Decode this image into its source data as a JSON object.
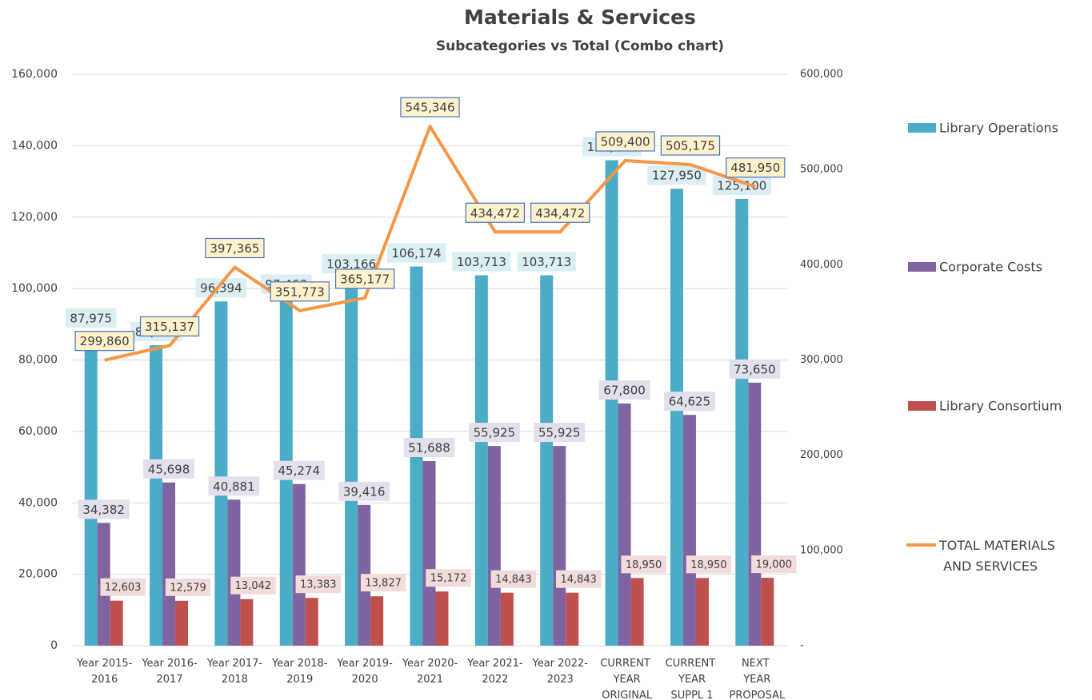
{
  "chart_data": {
    "type": "combo",
    "title": "Materials & Services",
    "subtitle": "Subcategories vs Total (Combo chart)",
    "categories": [
      "Year 2015-2016",
      "Year 2016-2017",
      "Year 2017-2018",
      "Year 2018-2019",
      "Year 2019-2020",
      "Year 2020-2021",
      "Year 2021-2022",
      "Year 2022-2023",
      "CURRENT YEAR ORIGINAL",
      "CURRENT YEAR SUPPL 1",
      "NEXT YEAR PROPOSAL"
    ],
    "series": [
      {
        "name": "Library Operations",
        "type": "bar",
        "color": "#4bacc6",
        "label_bg": "#daeef3",
        "values": [
          87975,
          84140,
          96394,
          97463,
          103166,
          106174,
          103713,
          103713,
          135950,
          127950,
          125100
        ],
        "value_labels": [
          "87,975",
          "84,140",
          "96,394",
          "97,463",
          "103,166",
          "106,174",
          "103,713",
          "103,713",
          "135,950",
          "127,950",
          "125,100"
        ]
      },
      {
        "name": "Corporate Costs",
        "type": "bar",
        "color": "#8064a2",
        "label_bg": "#e4dfec",
        "values": [
          34382,
          45698,
          40881,
          45274,
          39416,
          51688,
          55925,
          55925,
          67800,
          64625,
          73650
        ],
        "value_labels": [
          "34,382",
          "45,698",
          "40,881",
          "45,274",
          "39,416",
          "51,688",
          "55,925",
          "55,925",
          "67,800",
          "64,625",
          "73,650"
        ]
      },
      {
        "name": "Library Consortium",
        "type": "bar",
        "color": "#c0504d",
        "label_bg": "#f2dcdb",
        "values": [
          12603,
          12579,
          13042,
          13383,
          13827,
          15172,
          14843,
          14843,
          18950,
          18950,
          19000
        ],
        "value_labels": [
          "12,603",
          "12,579",
          "13,042",
          "13,383",
          "13,827",
          "15,172",
          "14,843",
          "14,843",
          "18,950",
          "18,950",
          "19,000"
        ]
      },
      {
        "name": "TOTAL MATERIALS AND SERVICES",
        "type": "line",
        "axis": "y2",
        "color": "#f79646",
        "label_bg": "#fff2cc",
        "values": [
          299860,
          315137,
          397365,
          351773,
          365177,
          545346,
          434472,
          434472,
          509400,
          505175,
          481950
        ],
        "value_labels": [
          "299,860",
          "315,137",
          "397,365",
          "351,773",
          "365,177",
          "545,346",
          "434,472",
          "434,472",
          "509,400",
          "505,175",
          "481,950"
        ]
      }
    ],
    "ylim": [
      0,
      160000
    ],
    "yticks": [
      0,
      {
        "value": 20000,
        "label": "20,000"
      },
      {
        "value": 40000,
        "label": "40,000"
      },
      {
        "value": 60000,
        "label": "60,000"
      },
      {
        "value": 80000,
        "label": "80,000"
      },
      {
        "value": 100000,
        "label": "100,000"
      },
      {
        "value": 120000,
        "label": "120,000"
      },
      {
        "value": 140000,
        "label": "140,000"
      },
      {
        "value": 160000,
        "label": "160,000"
      }
    ],
    "y2lim": [
      0,
      600000
    ],
    "y2ticks": [
      {
        "value": 0,
        "label": "-"
      },
      {
        "value": 100000,
        "label": "100,000"
      },
      {
        "value": 200000,
        "label": "200,000"
      },
      {
        "value": 300000,
        "label": "300,000"
      },
      {
        "value": 400000,
        "label": "400,000"
      },
      {
        "value": 500000,
        "label": "500,000"
      },
      {
        "value": 600000,
        "label": "600,000"
      }
    ],
    "grid": true,
    "legend": "right"
  }
}
